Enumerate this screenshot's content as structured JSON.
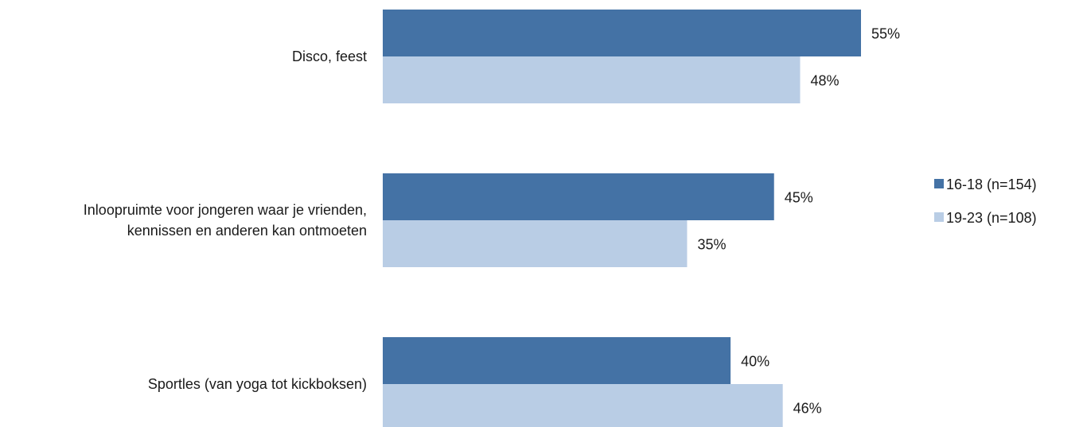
{
  "chart_data": {
    "type": "bar",
    "orientation": "horizontal",
    "categories": [
      [
        "Disco, feest"
      ],
      [
        "Inloopruimte voor jongeren waar je vrienden,",
        "kennissen en anderen kan ontmoeten"
      ],
      [
        "Sportles (van yoga tot kickboksen)"
      ]
    ],
    "series": [
      {
        "name": "16-18 (n=154)",
        "values": [
          55,
          45,
          40
        ],
        "labels": [
          "55%",
          "45%",
          "40%"
        ],
        "color": "#4472a5"
      },
      {
        "name": "19-23 (n=108)",
        "values": [
          48,
          35,
          46
        ],
        "labels": [
          "48%",
          "35%",
          "46%"
        ],
        "color": "#b9cde5"
      }
    ],
    "value_unit": "%",
    "xlim": [
      0,
      55
    ],
    "legend_position": "right",
    "grid": false
  }
}
